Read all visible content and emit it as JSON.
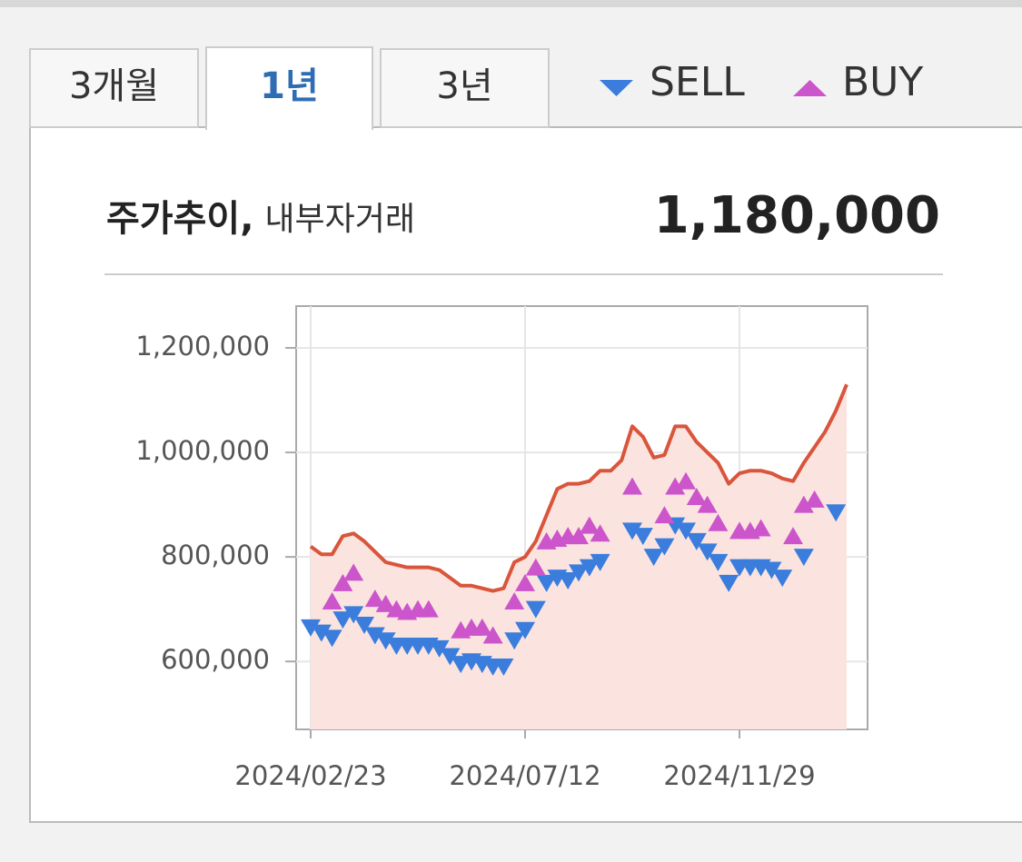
{
  "tabs": {
    "items": [
      "3개월",
      "1년",
      "3년"
    ],
    "active": 1
  },
  "header": {
    "title": "주가추이,",
    "subtitle": "내부자거래",
    "price": "1,180,000"
  },
  "chart_data": {
    "type": "line",
    "categories": [
      "2024/02/23",
      null,
      null,
      null,
      null,
      null,
      null,
      null,
      null,
      null,
      null,
      null,
      null,
      null,
      null,
      null,
      null,
      null,
      null,
      null,
      "2024/07/12",
      null,
      null,
      null,
      null,
      null,
      null,
      null,
      null,
      null,
      null,
      null,
      null,
      null,
      null,
      null,
      null,
      null,
      null,
      null,
      "2024/11/29",
      null,
      null,
      null,
      null,
      null,
      null,
      null,
      null,
      null,
      null
    ],
    "values": [
      820000,
      805000,
      805000,
      840000,
      845000,
      830000,
      810000,
      790000,
      785000,
      780000,
      780000,
      780000,
      775000,
      760000,
      745000,
      745000,
      740000,
      735000,
      740000,
      790000,
      800000,
      830000,
      880000,
      930000,
      940000,
      940000,
      945000,
      965000,
      965000,
      985000,
      1050000,
      1030000,
      990000,
      995000,
      1050000,
      1050000,
      1020000,
      1000000,
      980000,
      940000,
      960000,
      965000,
      965000,
      960000,
      950000,
      945000,
      980000,
      1010000,
      1040000,
      1080000,
      1130000
    ],
    "color": "#d9553b",
    "area_color": "#fbe4df",
    "series": [
      {
        "name": "SELL",
        "color": "#3b7ddd",
        "marker": "down",
        "values": [
          665000,
          655000,
          645000,
          680000,
          690000,
          670000,
          650000,
          640000,
          630000,
          630000,
          630000,
          630000,
          625000,
          610000,
          595000,
          600000,
          595000,
          590000,
          590000,
          640000,
          660000,
          700000,
          750000,
          760000,
          755000,
          770000,
          780000,
          790000,
          null,
          null,
          850000,
          840000,
          800000,
          820000,
          860000,
          850000,
          830000,
          810000,
          790000,
          750000,
          780000,
          780000,
          780000,
          775000,
          760000,
          null,
          800000,
          null,
          null,
          885000,
          null
        ]
      },
      {
        "name": "BUY",
        "color": "#cc55cc",
        "marker": "up",
        "values": [
          null,
          null,
          715000,
          750000,
          770000,
          null,
          720000,
          710000,
          700000,
          695000,
          700000,
          700000,
          null,
          null,
          660000,
          665000,
          665000,
          650000,
          null,
          715000,
          750000,
          780000,
          830000,
          835000,
          840000,
          840000,
          860000,
          845000,
          null,
          null,
          935000,
          null,
          null,
          880000,
          935000,
          945000,
          915000,
          900000,
          865000,
          null,
          850000,
          850000,
          855000,
          null,
          null,
          840000,
          900000,
          910000,
          null,
          null,
          null
        ]
      }
    ],
    "ylim": [
      470000,
      1280000
    ],
    "yticks": [
      {
        "value": 600000,
        "label": "600,000"
      },
      {
        "value": 800000,
        "label": "800,000"
      },
      {
        "value": 1000000,
        "label": "1,000,000"
      },
      {
        "value": 1200000,
        "label": "1,200,000"
      }
    ],
    "grid": true
  }
}
